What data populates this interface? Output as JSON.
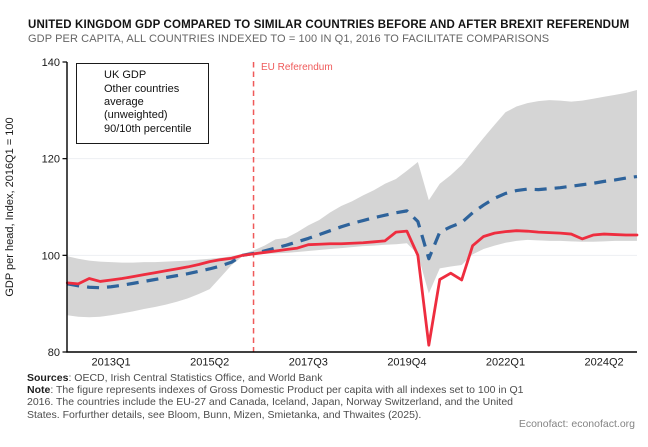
{
  "header": {
    "title": "UNITED KINGDOM GDP COMPARED TO SIMILAR COUNTRIES BEFORE AND AFTER BREXIT REFERENDUM",
    "subtitle": "GDP PER CAPITA, ALL COUNTRIES INDEXED TO = 100 IN Q1, 2016 TO FACILITATE COMPARISONS"
  },
  "footer": {
    "sources_label": "Sources",
    "sources_text": ": OECD, Irish Central Statistics Office, and World Bank",
    "note_label": "Note",
    "note_text": ": The figure represents indexes of Gross Domestic Product per capita with all indexes set to 100 in Q1 2016. The countries include the EU-27 and Canada, Iceland, Japan, Norway Switzerland, and the United States. Forfurther details, see Bloom, Bunn, Mizen, Smietanka, and Thwaites (2025).",
    "brand": "Econofact: econofact.org"
  },
  "chart_data": {
    "type": "line",
    "title": "UNITED KINGDOM GDP COMPARED TO SIMILAR COUNTRIES BEFORE AND AFTER BREXIT REFERENDUM",
    "ylabel": "GDP per head, Index, 2016Q1 = 100",
    "xlabel": "",
    "ylim": [
      80,
      140
    ],
    "yticks": [
      80,
      100,
      120,
      140
    ],
    "gridlines": [
      100,
      120
    ],
    "grid": "horizontal-light",
    "legend_position": "top-left-inside",
    "x_start": "2012Q1",
    "x_end": "2025Q1",
    "x_freq": "quarterly",
    "n_points": 53,
    "xticks": [
      {
        "label": "2013Q1",
        "index": 4
      },
      {
        "label": "2015Q2",
        "index": 13
      },
      {
        "label": "2017Q3",
        "index": 22
      },
      {
        "label": "2019Q4",
        "index": 31
      },
      {
        "label": "2022Q1",
        "index": 40
      },
      {
        "label": "2024Q2",
        "index": 49
      }
    ],
    "annotation": {
      "label": "EU Referendum",
      "x_quarter": "2016Q2",
      "x_index": 17
    },
    "colors": {
      "uk": "#ee2d3f",
      "average": "#2e639b",
      "band": "#d5d5d5",
      "referendum_line": "#ef5a5a",
      "grid": "#edeff3",
      "axis": "#000000"
    },
    "series": [
      {
        "name": "UK GDP",
        "style": "solid",
        "color": "#ee2d3f",
        "values": [
          94.3,
          94.1,
          95.2,
          94.6,
          94.9,
          95.2,
          95.6,
          96.0,
          96.4,
          96.8,
          97.2,
          97.6,
          98.1,
          98.7,
          99.1,
          99.4,
          100.0,
          100.3,
          100.6,
          100.9,
          101.2,
          101.5,
          102.2,
          102.3,
          102.4,
          102.4,
          102.5,
          102.6,
          102.8,
          103.0,
          104.8,
          105.0,
          100.0,
          81.4,
          95.0,
          96.3,
          94.9,
          102.0,
          103.9,
          104.6,
          104.9,
          105.1,
          105.0,
          104.8,
          104.7,
          104.6,
          104.4,
          103.4,
          104.2,
          104.4,
          104.3,
          104.2,
          104.2
        ]
      },
      {
        "name": "Other countries average (unweighted)",
        "style": "dashed",
        "color": "#2e639b",
        "values": [
          94.1,
          93.7,
          93.4,
          93.3,
          93.5,
          93.8,
          94.2,
          94.6,
          95.0,
          95.4,
          95.8,
          96.2,
          96.7,
          97.2,
          97.8,
          98.6,
          100.0,
          100.4,
          100.9,
          101.5,
          102.1,
          102.8,
          103.5,
          104.3,
          105.1,
          105.9,
          106.6,
          107.2,
          107.8,
          108.3,
          108.8,
          109.2,
          107.0,
          99.3,
          104.8,
          105.9,
          106.8,
          108.8,
          110.4,
          111.8,
          112.8,
          113.4,
          113.7,
          113.6,
          113.8,
          114.0,
          114.3,
          114.6,
          114.9,
          115.3,
          115.6,
          116.0,
          116.3
        ]
      },
      {
        "name": "90/10th percentile",
        "type": "band",
        "color": "#d5d5d5",
        "upper": [
          99.8,
          99.3,
          98.9,
          98.7,
          98.6,
          98.5,
          98.5,
          98.6,
          98.6,
          98.7,
          98.8,
          98.9,
          99.1,
          99.3,
          99.5,
          99.8,
          100.3,
          101.0,
          102.0,
          103.3,
          103.6,
          104.8,
          106.2,
          107.3,
          108.9,
          110.2,
          111.2,
          112.4,
          113.5,
          114.8,
          115.8,
          117.5,
          119.3,
          111.4,
          114.8,
          116.6,
          118.7,
          121.5,
          124.3,
          127.0,
          129.6,
          130.8,
          131.5,
          131.9,
          132.1,
          132.0,
          131.8,
          132.0,
          132.4,
          132.8,
          133.2,
          133.6,
          134.2
        ],
        "lower": [
          87.6,
          87.3,
          87.2,
          87.3,
          87.6,
          88.0,
          88.4,
          88.9,
          89.3,
          89.8,
          90.4,
          91.1,
          92.0,
          93.0,
          95.5,
          98.0,
          99.8,
          100.1,
          100.3,
          100.4,
          100.5,
          100.7,
          100.9,
          101.1,
          101.3,
          101.5,
          101.7,
          101.9,
          102.0,
          102.2,
          102.3,
          102.5,
          100.2,
          92.1,
          97.3,
          97.7,
          98.0,
          100.2,
          101.3,
          102.0,
          102.6,
          103.0,
          103.2,
          103.1,
          103.0,
          103.0,
          102.9,
          102.8,
          102.8,
          102.9,
          103.0,
          103.0,
          103.0
        ]
      }
    ]
  }
}
